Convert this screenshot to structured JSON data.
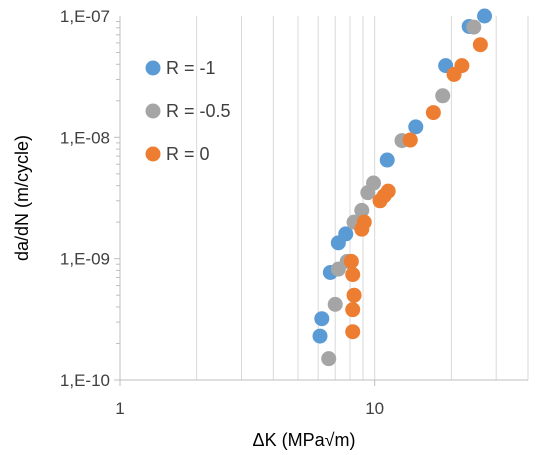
{
  "chart_data": {
    "type": "scatter",
    "xscale": "log",
    "yscale": "log",
    "xlim": [
      1,
      40
    ],
    "ylim": [
      1e-10,
      1e-07
    ],
    "xticks": [
      {
        "value": 1,
        "label": "1"
      },
      {
        "value": 10,
        "label": "10"
      }
    ],
    "yticks": [
      {
        "value": 1e-07,
        "label": "1,E-07"
      },
      {
        "value": 1e-08,
        "label": "1,E-08"
      },
      {
        "value": 1e-09,
        "label": "1,E-09"
      },
      {
        "value": 1e-10,
        "label": "1,E-10"
      }
    ],
    "xlabel": "ΔK (MPa√m)",
    "ylabel": "da/dN (m/cycle)",
    "grid": {
      "x_major": true,
      "y_major": false
    },
    "legend_position": "top-left",
    "series": [
      {
        "name": "R = -1",
        "color": "#5B9BD5",
        "points": [
          {
            "x": 6.1,
            "y": 2.3e-10
          },
          {
            "x": 6.2,
            "y": 3.2e-10
          },
          {
            "x": 6.7,
            "y": 7.7e-10
          },
          {
            "x": 7.2,
            "y": 1.35e-09
          },
          {
            "x": 7.7,
            "y": 1.6e-09
          },
          {
            "x": 11.2,
            "y": 6.5e-09
          },
          {
            "x": 14.5,
            "y": 1.22e-08
          },
          {
            "x": 19.0,
            "y": 3.9e-08
          },
          {
            "x": 23.5,
            "y": 8.2e-08
          },
          {
            "x": 27.0,
            "y": 1e-07
          }
        ]
      },
      {
        "name": "R = -0.5",
        "color": "#A5A5A5",
        "points": [
          {
            "x": 6.6,
            "y": 1.5e-10
          },
          {
            "x": 7.0,
            "y": 4.2e-10
          },
          {
            "x": 7.2,
            "y": 8.2e-10
          },
          {
            "x": 7.8,
            "y": 9.5e-10
          },
          {
            "x": 8.3,
            "y": 2e-09
          },
          {
            "x": 8.9,
            "y": 2.5e-09
          },
          {
            "x": 9.4,
            "y": 3.5e-09
          },
          {
            "x": 9.9,
            "y": 4.2e-09
          },
          {
            "x": 12.8,
            "y": 9.4e-09
          },
          {
            "x": 18.5,
            "y": 2.2e-08
          },
          {
            "x": 24.5,
            "y": 8.1e-08
          }
        ]
      },
      {
        "name": "R = 0",
        "color": "#ED7D31",
        "points": [
          {
            "x": 8.2,
            "y": 2.5e-10
          },
          {
            "x": 8.2,
            "y": 3.8e-10
          },
          {
            "x": 8.3,
            "y": 5e-10
          },
          {
            "x": 8.2,
            "y": 7.4e-10
          },
          {
            "x": 8.1,
            "y": 9.5e-10
          },
          {
            "x": 8.9,
            "y": 1.75e-09
          },
          {
            "x": 9.1,
            "y": 2e-09
          },
          {
            "x": 10.5,
            "y": 3e-09
          },
          {
            "x": 10.9,
            "y": 3.3e-09
          },
          {
            "x": 11.3,
            "y": 3.6e-09
          },
          {
            "x": 13.8,
            "y": 9.5e-09
          },
          {
            "x": 17.0,
            "y": 1.6e-08
          },
          {
            "x": 20.5,
            "y": 3.3e-08
          },
          {
            "x": 22.0,
            "y": 3.9e-08
          },
          {
            "x": 26.0,
            "y": 5.8e-08
          }
        ]
      }
    ]
  }
}
